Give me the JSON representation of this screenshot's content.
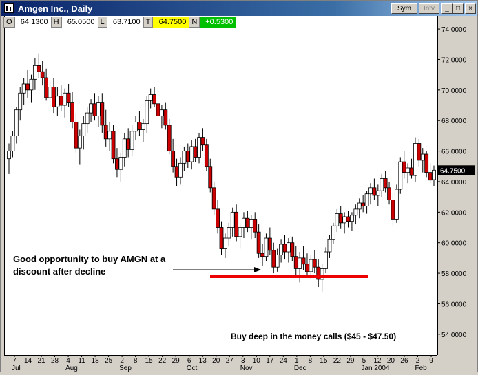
{
  "window": {
    "title": "Amgen Inc., Daily",
    "buttons": {
      "sym": "Sym",
      "intv": "Intv",
      "minimize": "_",
      "maximize": "□",
      "close": "×"
    }
  },
  "ohlc": {
    "o_key": "O",
    "o_val": "64.1300",
    "h_key": "H",
    "h_val": "65.0500",
    "l_key": "L",
    "l_val": "63.7100",
    "t_key": "T",
    "t_val": "64.7500",
    "n_key": "N",
    "n_val": "+0.5300"
  },
  "colors": {
    "up": "#ffffff",
    "down": "#cc0000",
    "outline": "#000000",
    "support": "#ee0000",
    "price_box": "#000000"
  },
  "annotations": {
    "line1": "Good opportunity to buy AMGN at a",
    "line2": "discount after decline",
    "calls": "Buy deep in the money calls ($45 - $47.50)"
  },
  "last_price": "64.7500",
  "chart_data": {
    "type": "candlestick",
    "title": "Amgen Inc., Daily",
    "ylim": [
      53,
      74.5
    ],
    "y_ticks": [
      "74.0000",
      "72.0000",
      "70.0000",
      "68.0000",
      "66.0000",
      "64.0000",
      "62.0000",
      "60.0000",
      "58.0000",
      "56.0000",
      "54.0000"
    ],
    "x_ticks": [
      "7",
      "14",
      "21",
      "28",
      "4",
      "11",
      "18",
      "25",
      "2",
      "8",
      "15",
      "22",
      "29",
      "6",
      "13",
      "20",
      "27",
      "3",
      "10",
      "17",
      "24",
      "1",
      "8",
      "15",
      "22",
      "29",
      "5",
      "12",
      "20",
      "26",
      "2",
      "9"
    ],
    "months": [
      "Jul",
      "Aug",
      "Sep",
      "Oct",
      "Nov",
      "Dec",
      "Jan 2004",
      "Feb"
    ],
    "support_level": 57.8,
    "grid": false,
    "ohlc_approx": [
      [
        65.5,
        66.5,
        64.5,
        66.0
      ],
      [
        66.0,
        67.3,
        65.6,
        67.0
      ],
      [
        67.0,
        68.9,
        66.5,
        68.7
      ],
      [
        68.7,
        70.2,
        68.0,
        69.8
      ],
      [
        69.8,
        70.8,
        69.0,
        70.4
      ],
      [
        70.4,
        71.3,
        69.5,
        70.0
      ],
      [
        70.0,
        71.0,
        69.2,
        70.7
      ],
      [
        70.7,
        72.1,
        70.0,
        71.6
      ],
      [
        71.6,
        72.4,
        70.8,
        71.2
      ],
      [
        71.2,
        71.9,
        70.3,
        70.8
      ],
      [
        70.8,
        71.4,
        69.3,
        69.5
      ],
      [
        69.5,
        70.6,
        68.8,
        70.2
      ],
      [
        70.2,
        70.8,
        68.5,
        68.9
      ],
      [
        68.9,
        70.2,
        68.3,
        69.6
      ],
      [
        69.6,
        70.3,
        68.6,
        69.0
      ],
      [
        69.0,
        70.1,
        68.2,
        69.8
      ],
      [
        69.8,
        70.4,
        68.9,
        69.2
      ],
      [
        69.2,
        69.9,
        67.5,
        67.9
      ],
      [
        67.9,
        68.5,
        65.9,
        66.2
      ],
      [
        66.2,
        67.4,
        65.1,
        67.0
      ],
      [
        67.0,
        68.3,
        66.1,
        67.8
      ],
      [
        67.8,
        68.9,
        67.2,
        68.5
      ],
      [
        68.5,
        69.4,
        67.9,
        69.1
      ],
      [
        69.1,
        69.8,
        68.0,
        68.3
      ],
      [
        68.3,
        69.6,
        67.6,
        69.2
      ],
      [
        69.2,
        69.8,
        67.2,
        67.7
      ],
      [
        67.7,
        68.7,
        66.3,
        66.8
      ],
      [
        66.8,
        67.9,
        66.0,
        67.3
      ],
      [
        67.3,
        67.7,
        65.2,
        65.5
      ],
      [
        65.5,
        66.2,
        64.3,
        64.8
      ],
      [
        64.8,
        65.9,
        64.0,
        65.6
      ],
      [
        65.6,
        67.2,
        65.0,
        66.8
      ],
      [
        66.8,
        67.5,
        65.6,
        66.1
      ],
      [
        66.1,
        67.7,
        65.7,
        67.3
      ],
      [
        67.3,
        68.3,
        66.7,
        67.9
      ],
      [
        67.9,
        68.6,
        67.0,
        67.4
      ],
      [
        67.4,
        68.1,
        66.6,
        67.8
      ],
      [
        67.8,
        69.6,
        67.2,
        69.3
      ],
      [
        69.3,
        70.1,
        68.8,
        69.7
      ],
      [
        69.7,
        70.2,
        68.9,
        69.1
      ],
      [
        69.1,
        69.7,
        67.9,
        68.3
      ],
      [
        68.3,
        69.0,
        67.5,
        68.7
      ],
      [
        68.7,
        69.2,
        67.4,
        67.7
      ],
      [
        67.7,
        68.1,
        65.8,
        66.0
      ],
      [
        66.0,
        66.8,
        64.6,
        65.0
      ],
      [
        65.0,
        65.5,
        63.7,
        64.3
      ],
      [
        64.3,
        65.6,
        63.8,
        65.2
      ],
      [
        65.2,
        66.3,
        64.7,
        66.0
      ],
      [
        66.0,
        66.5,
        64.9,
        65.3
      ],
      [
        65.3,
        66.7,
        64.8,
        66.3
      ],
      [
        66.3,
        66.8,
        65.3,
        65.6
      ],
      [
        65.6,
        67.2,
        65.2,
        66.9
      ],
      [
        66.9,
        67.5,
        66.0,
        66.4
      ],
      [
        66.4,
        66.8,
        64.7,
        65.0
      ],
      [
        65.0,
        65.5,
        63.3,
        63.6
      ],
      [
        63.6,
        64.0,
        61.8,
        62.2
      ],
      [
        62.2,
        62.8,
        60.6,
        61.0
      ],
      [
        61.0,
        61.4,
        59.2,
        59.6
      ],
      [
        59.6,
        60.6,
        59.0,
        60.3
      ],
      [
        60.3,
        61.3,
        59.8,
        61.0
      ],
      [
        61.0,
        62.3,
        60.4,
        62.0
      ],
      [
        62.0,
        62.5,
        60.1,
        60.4
      ],
      [
        60.4,
        61.3,
        59.6,
        61.0
      ],
      [
        61.0,
        62.0,
        60.3,
        61.6
      ],
      [
        61.6,
        62.1,
        60.7,
        61.0
      ],
      [
        61.0,
        61.8,
        60.2,
        61.5
      ],
      [
        61.5,
        62.0,
        60.3,
        60.7
      ],
      [
        60.7,
        61.2,
        59.0,
        59.3
      ],
      [
        59.3,
        59.9,
        58.5,
        59.1
      ],
      [
        59.1,
        60.6,
        58.8,
        60.3
      ],
      [
        60.3,
        61.0,
        59.2,
        59.5
      ],
      [
        59.5,
        60.0,
        58.0,
        58.4
      ],
      [
        58.4,
        59.6,
        58.1,
        59.2
      ],
      [
        59.2,
        60.2,
        58.7,
        59.9
      ],
      [
        59.9,
        60.5,
        58.9,
        59.4
      ],
      [
        59.4,
        60.3,
        58.7,
        60.0
      ],
      [
        60.0,
        60.4,
        58.8,
        59.1
      ],
      [
        59.1,
        59.8,
        57.9,
        58.3
      ],
      [
        58.3,
        59.4,
        57.4,
        59.0
      ],
      [
        59.0,
        59.8,
        58.2,
        58.6
      ],
      [
        58.6,
        59.3,
        57.7,
        58.1
      ],
      [
        58.1,
        59.2,
        57.6,
        58.9
      ],
      [
        58.9,
        59.5,
        58.0,
        58.4
      ],
      [
        58.4,
        58.9,
        57.1,
        57.6
      ],
      [
        57.6,
        58.6,
        56.8,
        58.3
      ],
      [
        58.3,
        59.7,
        58.0,
        59.4
      ],
      [
        59.4,
        60.5,
        59.0,
        60.2
      ],
      [
        60.2,
        61.3,
        59.9,
        61.1
      ],
      [
        61.1,
        62.2,
        60.7,
        61.9
      ],
      [
        61.9,
        62.4,
        60.9,
        61.3
      ],
      [
        61.3,
        62.0,
        60.6,
        61.7
      ],
      [
        61.7,
        62.1,
        61.0,
        61.4
      ],
      [
        61.4,
        62.0,
        60.8,
        61.8
      ],
      [
        61.8,
        62.5,
        61.2,
        62.2
      ],
      [
        62.2,
        62.9,
        61.6,
        62.6
      ],
      [
        62.6,
        63.1,
        62.0,
        62.4
      ],
      [
        62.4,
        63.4,
        61.9,
        63.2
      ],
      [
        63.2,
        63.9,
        62.5,
        63.6
      ],
      [
        63.6,
        64.2,
        62.8,
        63.1
      ],
      [
        63.1,
        63.8,
        62.4,
        63.4
      ],
      [
        63.4,
        64.5,
        63.0,
        64.2
      ],
      [
        64.2,
        64.7,
        63.3,
        63.6
      ],
      [
        63.6,
        64.0,
        62.5,
        62.8
      ],
      [
        62.8,
        63.3,
        61.1,
        61.5
      ],
      [
        61.5,
        63.8,
        61.3,
        63.5
      ],
      [
        63.5,
        65.6,
        63.2,
        65.3
      ],
      [
        65.3,
        66.0,
        64.2,
        64.6
      ],
      [
        64.6,
        65.2,
        63.9,
        64.9
      ],
      [
        64.9,
        65.5,
        64.2,
        64.4
      ],
      [
        64.4,
        66.9,
        64.0,
        66.5
      ],
      [
        66.5,
        66.8,
        65.0,
        65.4
      ],
      [
        65.4,
        66.2,
        64.6,
        65.8
      ],
      [
        65.8,
        66.0,
        64.3,
        64.6
      ],
      [
        64.6,
        65.2,
        63.9,
        64.1
      ],
      [
        64.13,
        65.05,
        63.71,
        64.75
      ]
    ]
  }
}
